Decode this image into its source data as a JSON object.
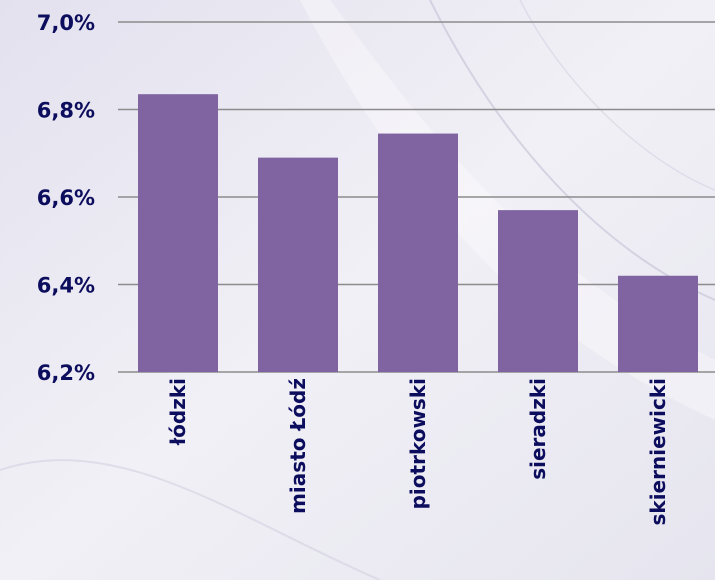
{
  "chart_data": {
    "type": "bar",
    "categories": [
      "łódzki",
      "miasto Łódź",
      "piotrkowski",
      "sieradzki",
      "skierniewicki"
    ],
    "values": [
      6.835,
      6.69,
      6.745,
      6.57,
      6.42
    ],
    "y_ticks": [
      "6,2%",
      "6,4%",
      "6,6%",
      "6,8%",
      "7,0%"
    ],
    "y_tick_values": [
      6.2,
      6.4,
      6.6,
      6.8,
      7.0
    ],
    "ylim": [
      6.2,
      7.0
    ],
    "title": "",
    "xlabel": "",
    "ylabel": "",
    "grid": true
  },
  "colors": {
    "bar": "#8064a2",
    "text": "#0d0d5e",
    "grid": "#8c8c8c",
    "background": "#ecebf3"
  }
}
